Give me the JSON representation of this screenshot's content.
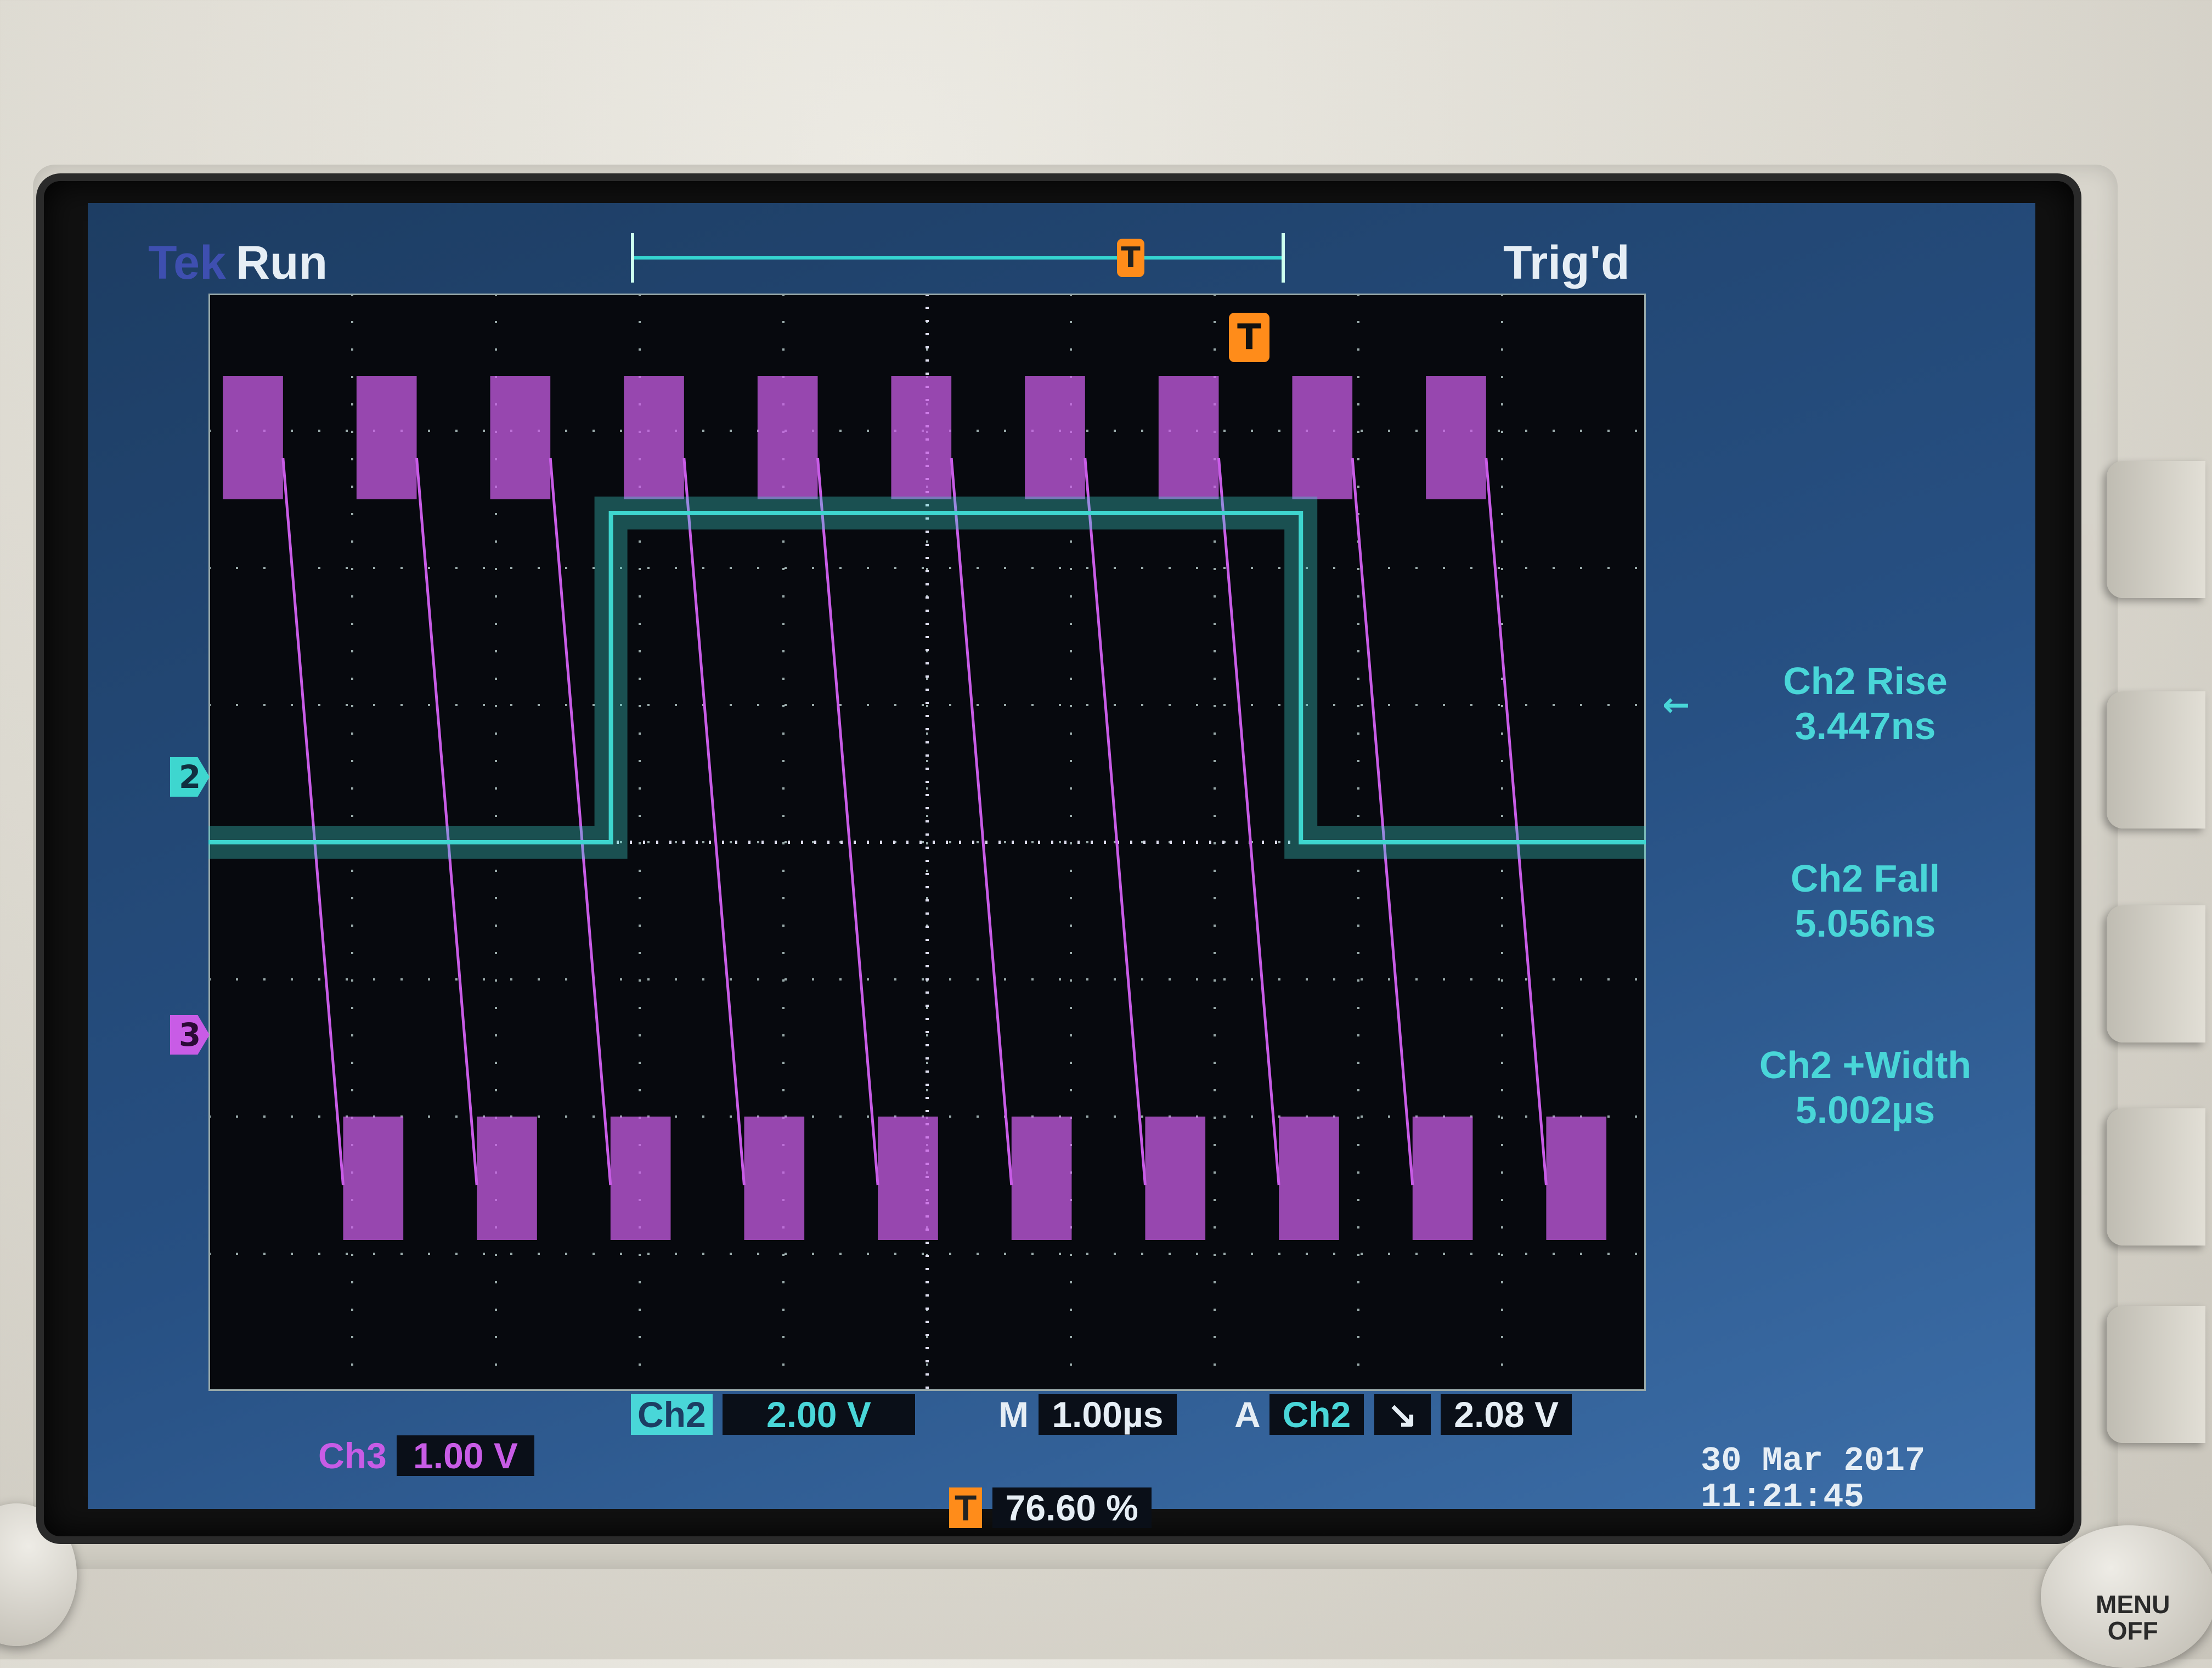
{
  "header": {
    "brand": "Tek",
    "run_state": "Run",
    "trigger_state": "Trig'd",
    "trigger_marker": "T"
  },
  "channel_markers": {
    "ch2": "2",
    "ch3": "3"
  },
  "measurements": [
    {
      "label": "Ch2 Rise",
      "value": "3.447ns"
    },
    {
      "label": "Ch2 Fall",
      "value": "5.056ns"
    },
    {
      "label": "Ch2 +Width",
      "value": "5.002µs"
    }
  ],
  "bottom": {
    "ch2_label": "Ch2",
    "ch2_scale": "2.00 V",
    "timebase_prefix": "M",
    "timebase": "1.00µs",
    "trigger_prefix": "A",
    "trigger_source": "Ch2",
    "trigger_slope": "↘",
    "trigger_level": "2.08 V",
    "ch3_label": "Ch3",
    "ch3_scale": "1.00 V",
    "trigger_position_marker": "T",
    "trigger_position": "76.60 %"
  },
  "datetime": {
    "date": "30 Mar 2017",
    "time": "11:21:45"
  },
  "hardware": {
    "menu_label_line1": "MENU",
    "menu_label_line2": "OFF"
  },
  "colors": {
    "ch2": "#3ed6cf",
    "ch3": "#c85ce6",
    "trigger": "#ff8c1a"
  },
  "waveforms": {
    "ch2": {
      "low_div": 4.0,
      "high_div": 6.4,
      "rise_time_div": 2.8,
      "fall_time_div": 7.6
    },
    "ch3": {
      "burst_period_div": 0.93,
      "first_burst_div": 0.1
    }
  }
}
